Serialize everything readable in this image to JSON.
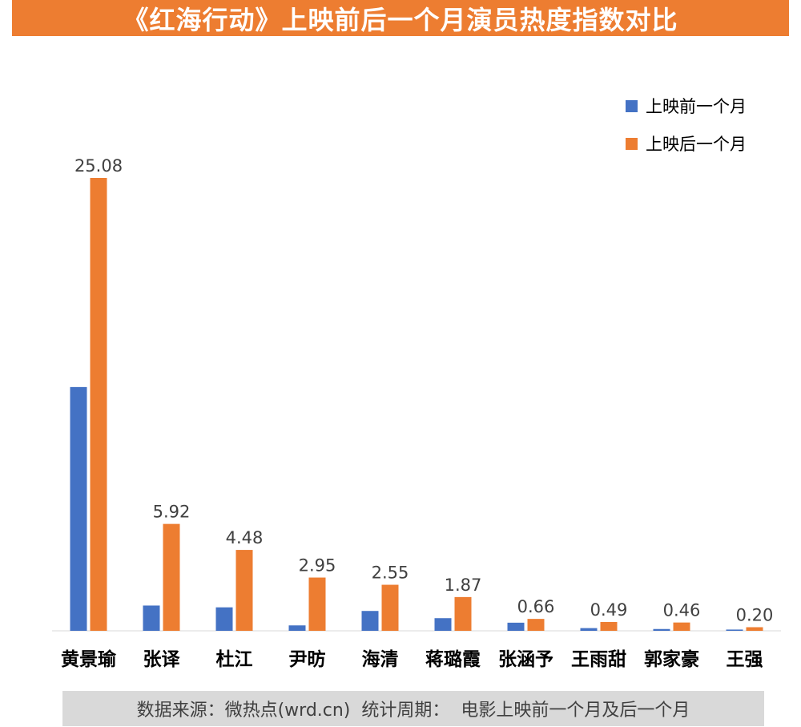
{
  "chart_data": {
    "type": "bar",
    "title": "《红海行动》上映前后一个月演员热度指数对比",
    "categories": [
      "黄景瑜",
      "张译",
      "杜江",
      "尹昉",
      "海清",
      "蒋璐霞",
      "张涵予",
      "王雨甜",
      "郭家豪",
      "王强"
    ],
    "series": [
      {
        "name": "上映前一个月",
        "color": "#4472C4",
        "values": [
          13.5,
          1.4,
          1.3,
          0.3,
          1.1,
          0.7,
          0.45,
          0.15,
          0.1,
          0.07
        ],
        "labels": [
          "",
          "",
          "",
          "",
          "",
          "",
          "",
          "",
          "",
          ""
        ]
      },
      {
        "name": "上映后一个月",
        "color": "#ED7D31",
        "values": [
          25.08,
          5.92,
          4.48,
          2.95,
          2.55,
          1.87,
          0.66,
          0.49,
          0.46,
          0.2
        ],
        "labels": [
          "25.08",
          "5.92",
          "4.48",
          "2.95",
          "2.55",
          "1.87",
          "0.66",
          "0.49",
          "0.46",
          "0.20"
        ]
      }
    ],
    "xlabel": "",
    "ylabel": "",
    "ylim": [
      0,
      28
    ],
    "legend_position": "top-right",
    "grid": false
  },
  "footer": {
    "source_label": "数据来源：微热点(wrd.cn)",
    "period_label": "统计周期：  电影上映前一个月及后一个月"
  }
}
